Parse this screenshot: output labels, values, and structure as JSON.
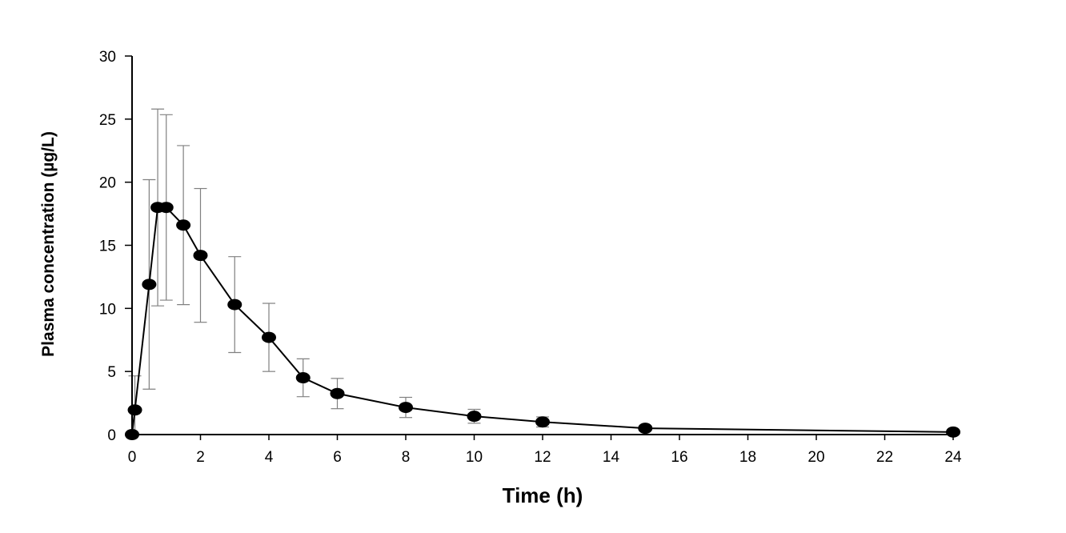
{
  "chart_data": {
    "type": "line",
    "title": "",
    "xlabel": "Time (h)",
    "ylabel": "Plasma concentration (µg/L)",
    "xlim": [
      0,
      24
    ],
    "ylim": [
      0,
      30
    ],
    "xticks": [
      0,
      2,
      4,
      6,
      8,
      10,
      12,
      14,
      16,
      18,
      20,
      22,
      24
    ],
    "yticks": [
      0,
      5,
      10,
      15,
      20,
      25,
      30
    ],
    "grid": false,
    "legend": "none",
    "series": [
      {
        "x": [
          0,
          0.083,
          0.5,
          0.75,
          1,
          1.5,
          2,
          3,
          4,
          5,
          6,
          8,
          10,
          12,
          15,
          24
        ],
        "y": [
          0,
          1.95,
          11.9,
          18.0,
          18.0,
          16.6,
          14.2,
          10.3,
          7.7,
          4.5,
          3.25,
          2.15,
          1.45,
          1.0,
          0.5,
          0.2
        ],
        "error": [
          0,
          2.7,
          8.3,
          7.8,
          7.35,
          6.3,
          5.3,
          3.8,
          2.7,
          1.5,
          1.2,
          0.8,
          0.55,
          0.4,
          0.2,
          0.1
        ],
        "color": "#000000",
        "error_color": "#808080"
      }
    ]
  }
}
